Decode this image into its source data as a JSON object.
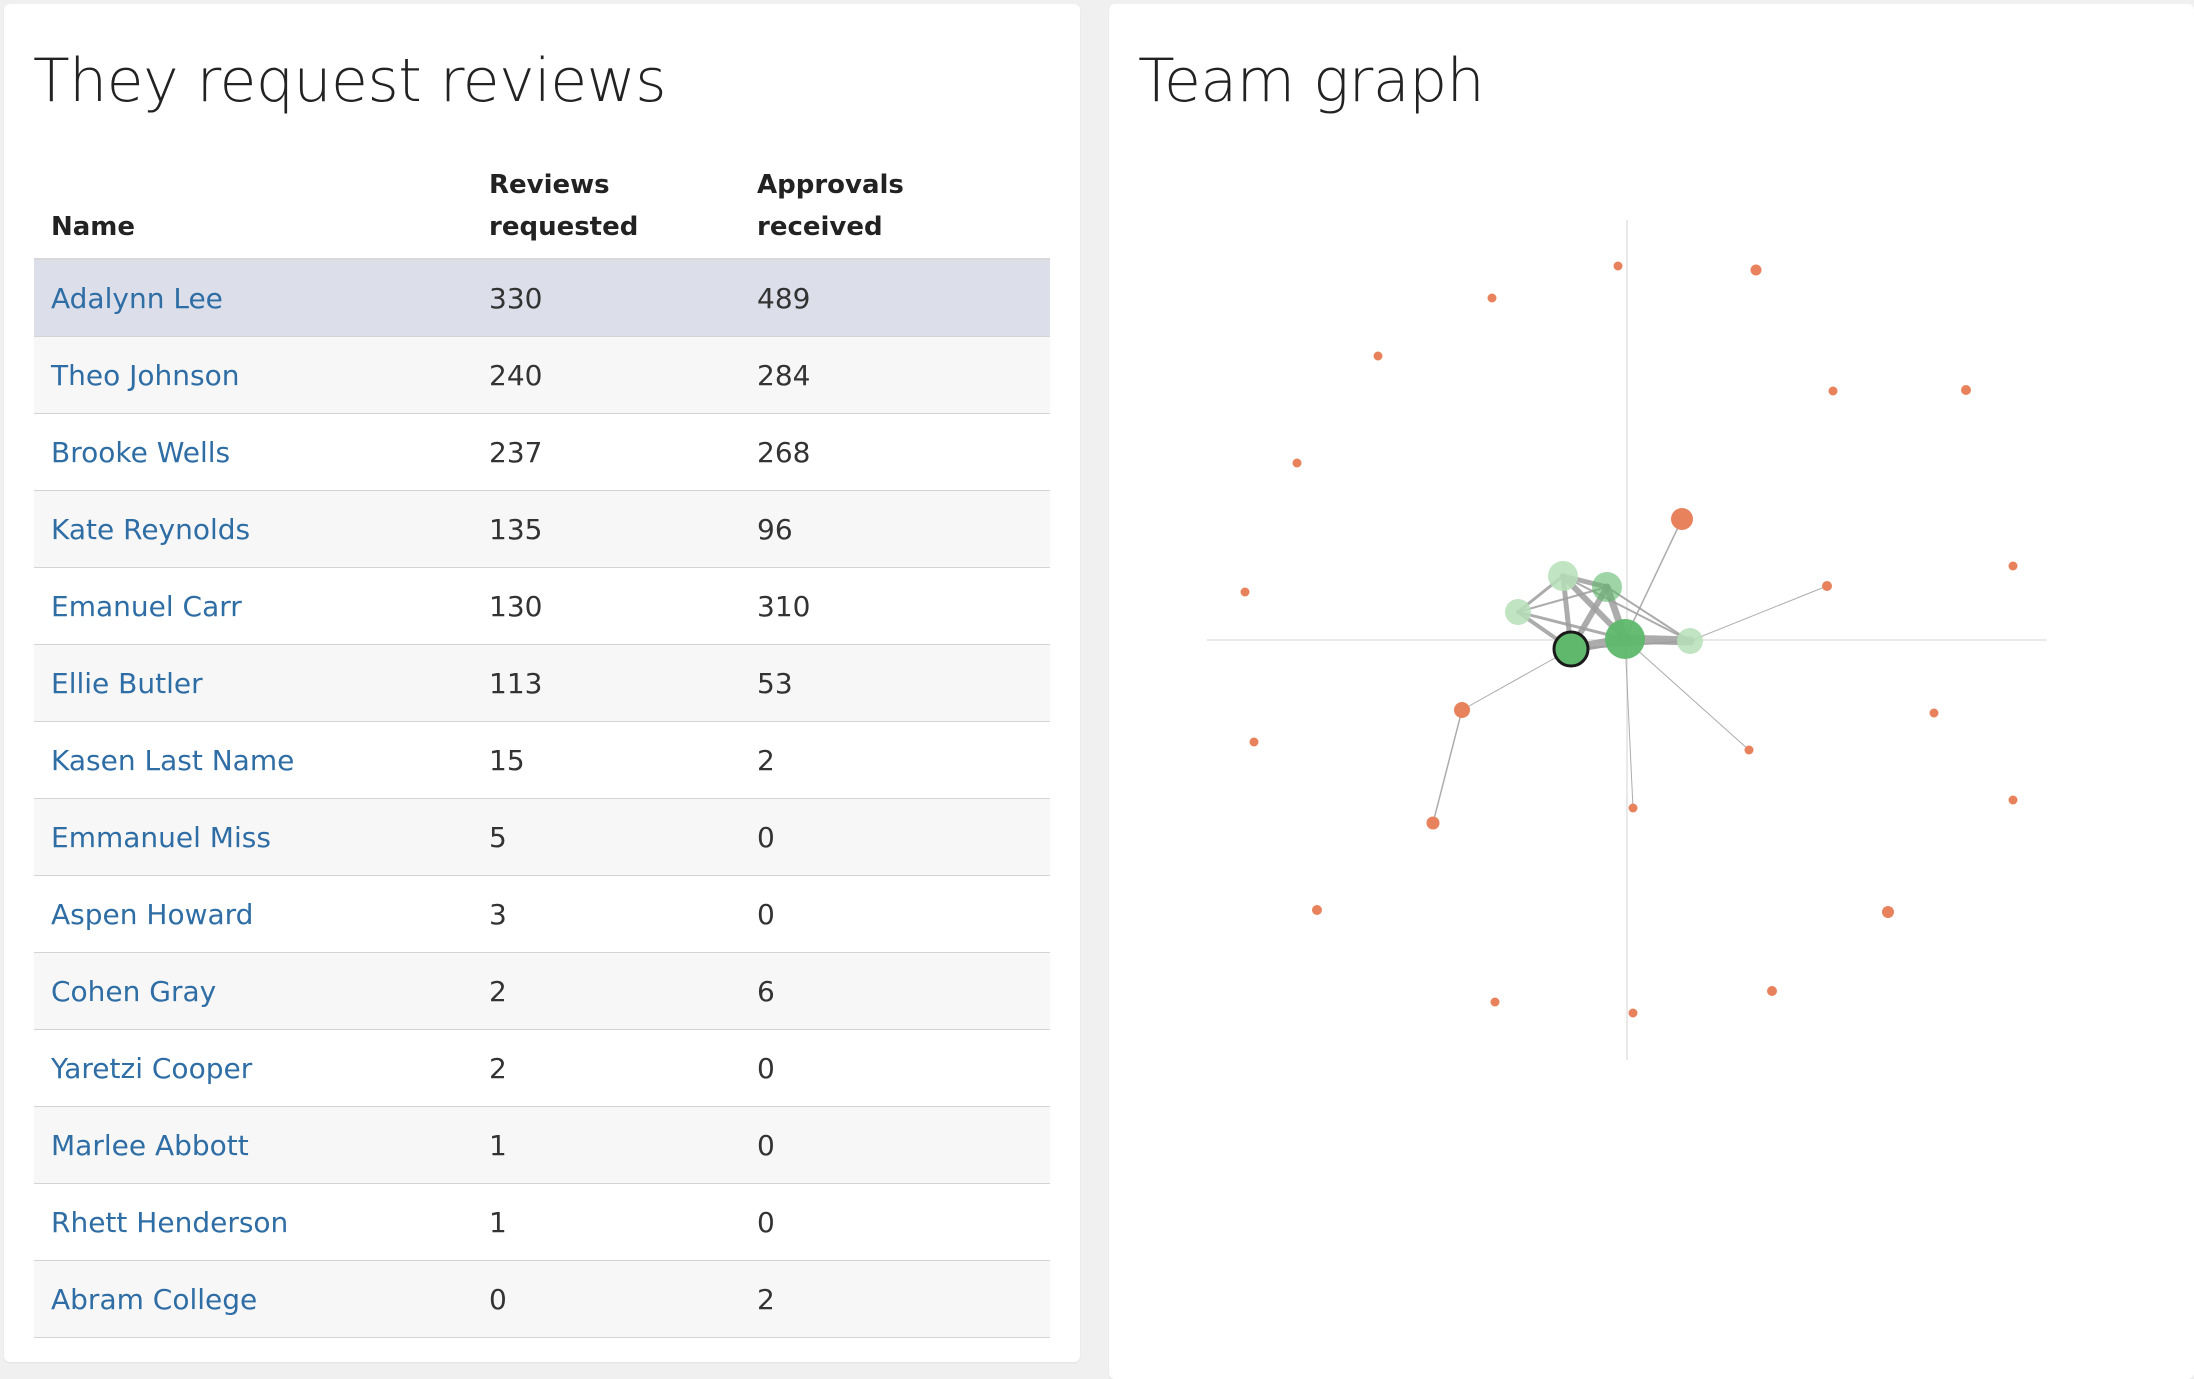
{
  "reviews": {
    "title": "They request reviews",
    "headers": {
      "name": "Name",
      "requested_line1": "Reviews",
      "requested_line2": "requested",
      "approvals_line1": "Approvals",
      "approvals_line2": "received"
    },
    "rows": [
      {
        "name": "Adalynn Lee",
        "requested": "330",
        "approvals": "489"
      },
      {
        "name": "Theo Johnson",
        "requested": "240",
        "approvals": "284"
      },
      {
        "name": "Brooke Wells",
        "requested": "237",
        "approvals": "268"
      },
      {
        "name": "Kate Reynolds",
        "requested": "135",
        "approvals": "96"
      },
      {
        "name": "Emanuel Carr",
        "requested": "130",
        "approvals": "310"
      },
      {
        "name": "Ellie Butler",
        "requested": "113",
        "approvals": "53"
      },
      {
        "name": "Kasen Last Name",
        "requested": "15",
        "approvals": "2"
      },
      {
        "name": "Emmanuel Miss",
        "requested": "5",
        "approvals": "0"
      },
      {
        "name": "Aspen Howard",
        "requested": "3",
        "approvals": "0"
      },
      {
        "name": "Cohen Gray",
        "requested": "2",
        "approvals": "6"
      },
      {
        "name": "Yaretzi Cooper",
        "requested": "2",
        "approvals": "0"
      },
      {
        "name": "Marlee Abbott",
        "requested": "1",
        "approvals": "0"
      },
      {
        "name": "Rhett Henderson",
        "requested": "1",
        "approvals": "0"
      },
      {
        "name": "Abram College",
        "requested": "0",
        "approvals": "2"
      }
    ],
    "selected_row": 0,
    "colors": {
      "selected_row": "#dcdfea",
      "link": "#2f6da5"
    }
  },
  "graph": {
    "title": "Team graph",
    "colors": {
      "team_node": "#5fb86c",
      "team_node_light": "#b6e0b8",
      "external_node": "#e8825c",
      "edge": "#9e9e9e",
      "axis": "#e2e2e2"
    }
  }
}
